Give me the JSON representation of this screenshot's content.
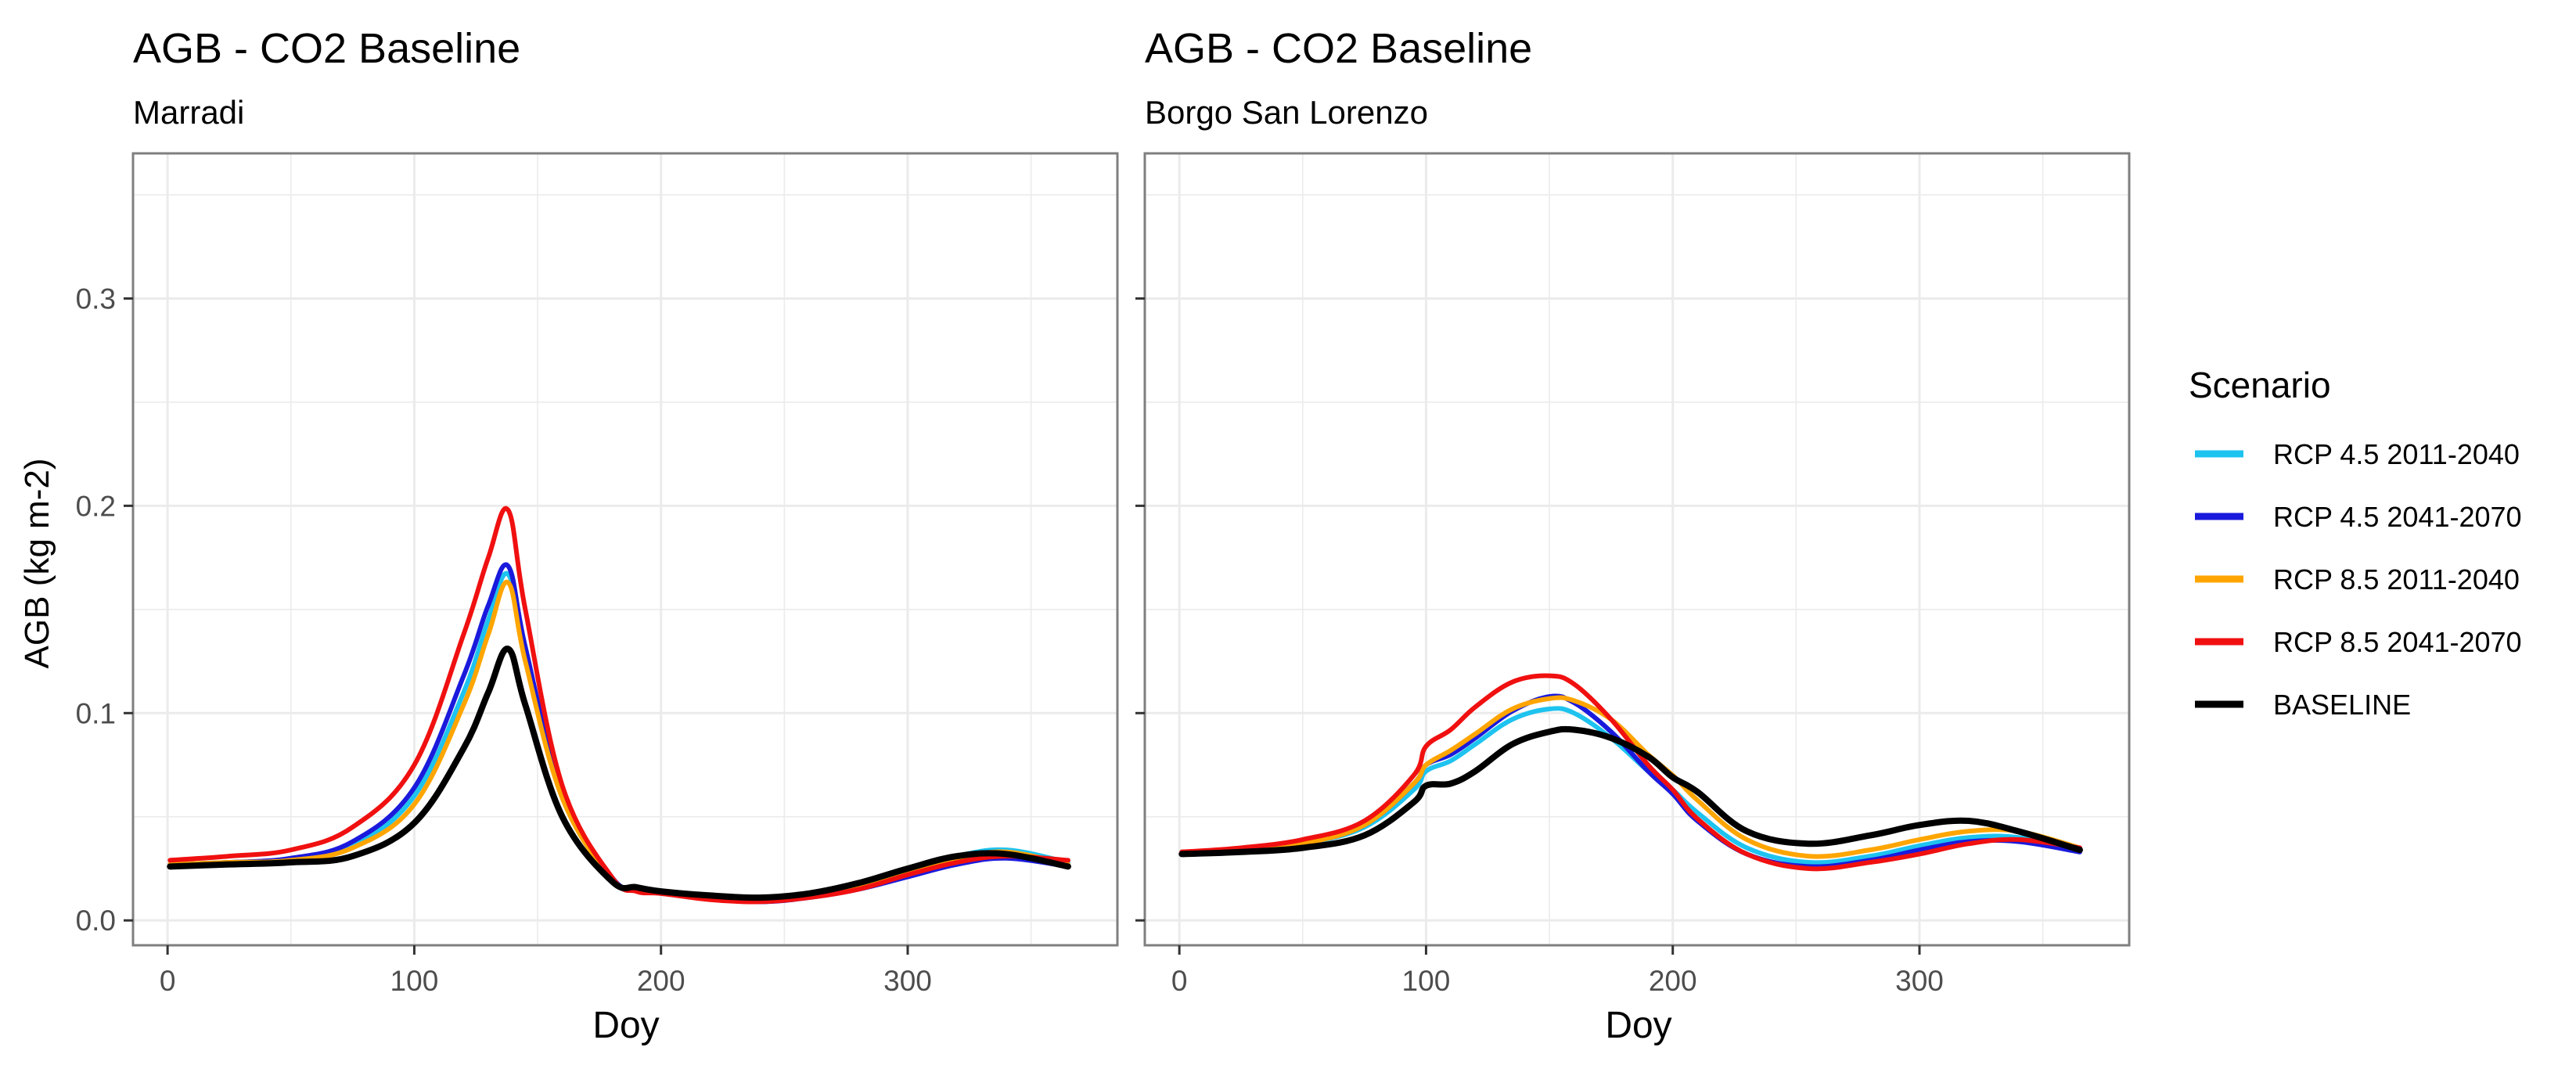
{
  "colors": {
    "rcp45_early": "#1ec3ef",
    "rcp45_late": "#1a1adc",
    "rcp85_early": "#ffa500",
    "rcp85_late": "#f01010",
    "baseline": "#000000",
    "grid": "#ebebeb",
    "panel_border": "#7f7f7f",
    "axis_text": "#4d4d4d"
  },
  "shared_axes": {
    "ylabel": "AGB (kg m-2)",
    "ylim": [
      -0.012,
      0.37
    ],
    "yticks": [
      0.0,
      0.1,
      0.2,
      0.3
    ],
    "ytick_labels": [
      "0.0",
      "0.1",
      "0.2",
      "0.3"
    ],
    "xlim": [
      -14,
      385
    ],
    "xticks": [
      0,
      100,
      200,
      300
    ],
    "xtick_labels": [
      "0",
      "100",
      "200",
      "300"
    ]
  },
  "legend": {
    "title": "Scenario",
    "placement": "right",
    "entries": [
      "RCP 4.5 2011-2040",
      "RCP 4.5 2041-2070",
      "RCP 8.5 2011-2040",
      "RCP 8.5 2041-2070",
      "BASELINE"
    ]
  },
  "chart_data": [
    {
      "type": "line",
      "title": "AGB - CO2 Baseline",
      "subtitle": "Marradi",
      "xlabel": "Doy",
      "ylabel": "AGB (kg m-2)",
      "x": [
        1,
        25,
        50,
        75,
        100,
        120,
        130,
        138,
        145,
        160,
        180,
        190,
        200,
        220,
        240,
        260,
        280,
        300,
        320,
        340,
        365
      ],
      "series": [
        {
          "name": "RCP 4.5 2011-2040",
          "values": [
            0.027,
            0.028,
            0.029,
            0.036,
            0.06,
            0.11,
            0.145,
            0.167,
            0.128,
            0.06,
            0.02,
            0.015,
            0.013,
            0.011,
            0.01,
            0.012,
            0.017,
            0.024,
            0.031,
            0.034,
            0.028
          ]
        },
        {
          "name": "RCP 4.5 2041-2070",
          "values": [
            0.027,
            0.028,
            0.03,
            0.038,
            0.064,
            0.118,
            0.152,
            0.171,
            0.132,
            0.062,
            0.021,
            0.015,
            0.013,
            0.011,
            0.009,
            0.011,
            0.015,
            0.021,
            0.027,
            0.03,
            0.026
          ]
        },
        {
          "name": "RCP 8.5 2011-2040",
          "values": [
            0.027,
            0.028,
            0.029,
            0.035,
            0.056,
            0.104,
            0.138,
            0.163,
            0.125,
            0.059,
            0.02,
            0.015,
            0.013,
            0.011,
            0.01,
            0.012,
            0.017,
            0.024,
            0.03,
            0.033,
            0.027
          ]
        },
        {
          "name": "RCP 8.5 2041-2070",
          "values": [
            0.029,
            0.031,
            0.034,
            0.045,
            0.075,
            0.138,
            0.175,
            0.198,
            0.15,
            0.065,
            0.021,
            0.014,
            0.013,
            0.01,
            0.009,
            0.011,
            0.015,
            0.022,
            0.028,
            0.031,
            0.029
          ]
        },
        {
          "name": "BASELINE",
          "values": [
            0.026,
            0.027,
            0.028,
            0.031,
            0.047,
            0.083,
            0.11,
            0.131,
            0.104,
            0.05,
            0.019,
            0.016,
            0.014,
            0.012,
            0.011,
            0.013,
            0.018,
            0.025,
            0.031,
            0.032,
            0.026
          ]
        }
      ]
    },
    {
      "type": "line",
      "title": "AGB - CO2 Baseline",
      "subtitle": "Borgo San Lorenzo",
      "xlabel": "Doy",
      "ylabel": "AGB (kg m-2)",
      "x": [
        1,
        25,
        50,
        75,
        95,
        100,
        110,
        120,
        135,
        150,
        160,
        175,
        190,
        200,
        210,
        230,
        255,
        280,
        300,
        320,
        340,
        365
      ],
      "series": [
        {
          "name": "RCP 4.5 2011-2040",
          "values": [
            0.033,
            0.034,
            0.037,
            0.045,
            0.063,
            0.072,
            0.077,
            0.085,
            0.097,
            0.102,
            0.1,
            0.088,
            0.072,
            0.063,
            0.052,
            0.035,
            0.028,
            0.031,
            0.036,
            0.04,
            0.04,
            0.034
          ]
        },
        {
          "name": "RCP 4.5 2041-2070",
          "values": [
            0.033,
            0.034,
            0.037,
            0.046,
            0.066,
            0.075,
            0.08,
            0.088,
            0.101,
            0.108,
            0.105,
            0.091,
            0.072,
            0.061,
            0.048,
            0.032,
            0.026,
            0.029,
            0.034,
            0.038,
            0.038,
            0.033
          ]
        },
        {
          "name": "RCP 8.5 2011-2040",
          "values": [
            0.033,
            0.034,
            0.037,
            0.046,
            0.066,
            0.075,
            0.082,
            0.09,
            0.102,
            0.107,
            0.106,
            0.097,
            0.08,
            0.07,
            0.058,
            0.039,
            0.031,
            0.034,
            0.039,
            0.043,
            0.043,
            0.035
          ]
        },
        {
          "name": "RCP 8.5 2041-2070",
          "values": [
            0.033,
            0.035,
            0.039,
            0.048,
            0.07,
            0.084,
            0.092,
            0.103,
            0.115,
            0.118,
            0.114,
            0.097,
            0.075,
            0.063,
            0.049,
            0.032,
            0.025,
            0.028,
            0.032,
            0.037,
            0.039,
            0.035
          ]
        },
        {
          "name": "BASELINE",
          "values": [
            0.032,
            0.033,
            0.035,
            0.041,
            0.057,
            0.065,
            0.066,
            0.072,
            0.085,
            0.091,
            0.092,
            0.088,
            0.079,
            0.069,
            0.062,
            0.043,
            0.037,
            0.041,
            0.046,
            0.048,
            0.043,
            0.034
          ]
        }
      ]
    }
  ]
}
